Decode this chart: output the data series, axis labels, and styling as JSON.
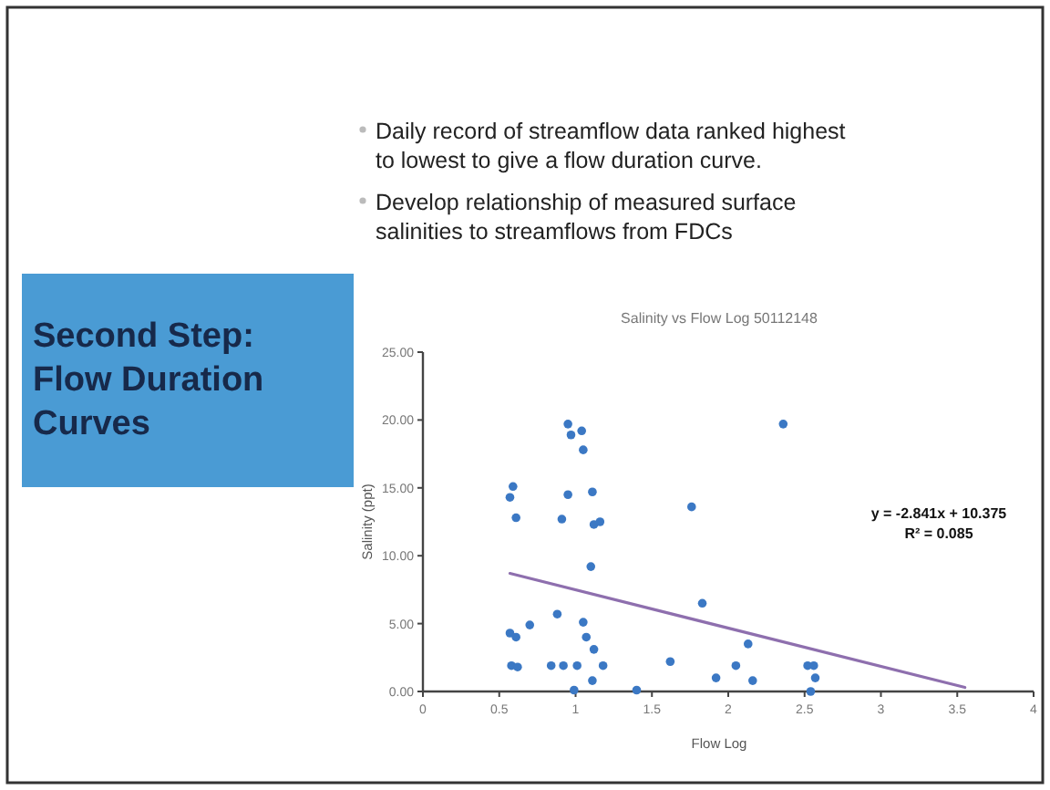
{
  "chart_data": {
    "type": "scatter",
    "title": "Salinity vs Flow Log 50112148",
    "xlabel": "Flow Log",
    "ylabel": "Salinity (ppt)",
    "annotations": [
      "Second Step: Flow Duration Curves",
      "Daily record of streamflow data ranked highest to lowest to give a flow duration curve.",
      "Develop relationship of measured surface salinities to streamflows from FDCs",
      "y = -2.841x + 10.375",
      "R² = 0.085"
    ],
    "xlim": [
      0,
      4
    ],
    "xticks": [
      0,
      0.5,
      1,
      1.5,
      2,
      2.5,
      3,
      3.5,
      4
    ],
    "ylim": [
      0,
      25
    ],
    "yticks": [
      {
        "value": 0,
        "label": "0.00"
      },
      {
        "value": 5,
        "label": "5.00"
      },
      {
        "value": 10,
        "label": "10.00"
      },
      {
        "value": 15,
        "label": "15.00"
      },
      {
        "value": 20,
        "label": "20.00"
      },
      {
        "value": 25,
        "label": "25.00"
      }
    ],
    "grid": false,
    "series": [
      {
        "marker": "circle",
        "color": "#3b78c4",
        "x": [
          0.95,
          0.97,
          1.04,
          1.05,
          0.59,
          0.57,
          0.61,
          0.95,
          1.11,
          0.91,
          1.12,
          1.16,
          1.76,
          2.36,
          1.1,
          0.57,
          0.61,
          0.7,
          0.88,
          1.05,
          1.07,
          1.12,
          0.58,
          0.62,
          0.84,
          0.92,
          1.01,
          1.18,
          1.11,
          0.99,
          1.4,
          1.62,
          1.83,
          1.92,
          2.05,
          2.13,
          2.16,
          2.52,
          2.56,
          2.57,
          2.54
        ],
        "values": [
          19.7,
          18.9,
          19.2,
          17.8,
          15.1,
          14.3,
          12.8,
          14.5,
          14.7,
          12.7,
          12.3,
          12.5,
          13.6,
          19.7,
          9.2,
          4.3,
          4.0,
          4.9,
          5.7,
          5.1,
          4.0,
          3.1,
          1.9,
          1.8,
          1.9,
          1.9,
          1.9,
          1.9,
          0.8,
          0.1,
          0.1,
          2.2,
          6.5,
          1.0,
          1.9,
          3.5,
          0.8,
          1.9,
          1.9,
          1.0,
          0.0
        ]
      },
      {
        "type": "line",
        "color": "#8e6fae",
        "x": [
          0.57,
          3.55
        ],
        "values": [
          8.7,
          0.3
        ]
      }
    ]
  }
}
